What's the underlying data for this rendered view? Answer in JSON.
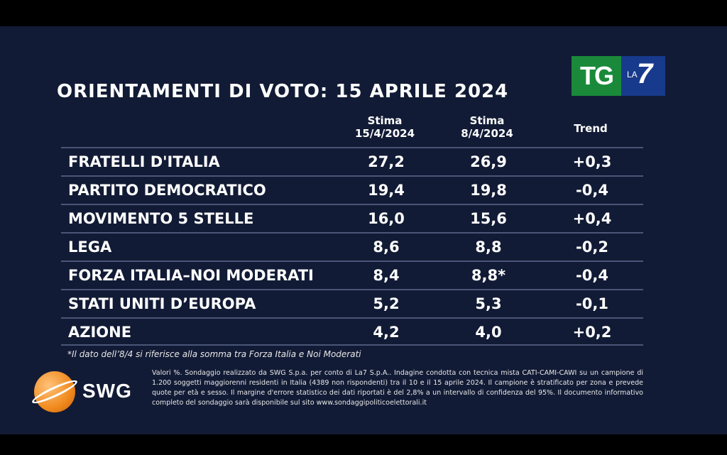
{
  "title": "ORIENTAMENTI DI VOTO: 15 APRILE 2024",
  "logo": {
    "tg": "TG",
    "la": "LA",
    "seven": "7"
  },
  "columns": {
    "current": {
      "line1": "Stima",
      "line2": "15/4/2024"
    },
    "previous": {
      "line1": "Stima",
      "line2": "8/4/2024"
    },
    "trend": "Trend"
  },
  "rows": [
    {
      "party": "FRATELLI D'ITALIA",
      "current": "27,2",
      "previous": "26,9",
      "trend": "+0,3"
    },
    {
      "party": "PARTITO DEMOCRATICO",
      "current": "19,4",
      "previous": "19,8",
      "trend": "-0,4"
    },
    {
      "party": "MOVIMENTO 5 STELLE",
      "current": "16,0",
      "previous": "15,6",
      "trend": "+0,4"
    },
    {
      "party": "LEGA",
      "current": "8,6",
      "previous": "8,8",
      "trend": "-0,2"
    },
    {
      "party": "FORZA ITALIA–NOI MODERATI",
      "current": "8,4",
      "previous": "8,8*",
      "trend": "-0,4"
    },
    {
      "party": "STATI UNITI D’EUROPA",
      "current": "5,2",
      "previous": "5,3",
      "trend": "-0,1"
    },
    {
      "party": "AZIONE",
      "current": "4,2",
      "previous": "4,0",
      "trend": "+0,2"
    }
  ],
  "footnote": "*Il dato dell’8/4 si riferisce alla somma tra Forza Italia e Noi Moderati",
  "brand": "SWG",
  "methodology": "Valori %. Sondaggio realizzato da SWG S.p.a. per conto di La7 S.p.A.. Indagine condotta con tecnica mista CATI-CAMI-CAWI su un campione di 1.200 soggetti maggiorenni residenti in Italia (4389 non rispondenti) tra il 10 e il 15 aprile 2024. Il campione è stratificato per zona e prevede quote per età e sesso. Il margine d'errore statistico dei dati riportati è del 2,8% a un intervallo di confidenza del 95%. Il documento informativo completo del sondaggio sarà disponibile sul sito www.sondaggipoliticoelettorali.it",
  "colors": {
    "background": "#121b35",
    "tg_green": "#1a8a3a",
    "la7_blue": "#183a8c",
    "swg_orange": "#f08a1e"
  }
}
